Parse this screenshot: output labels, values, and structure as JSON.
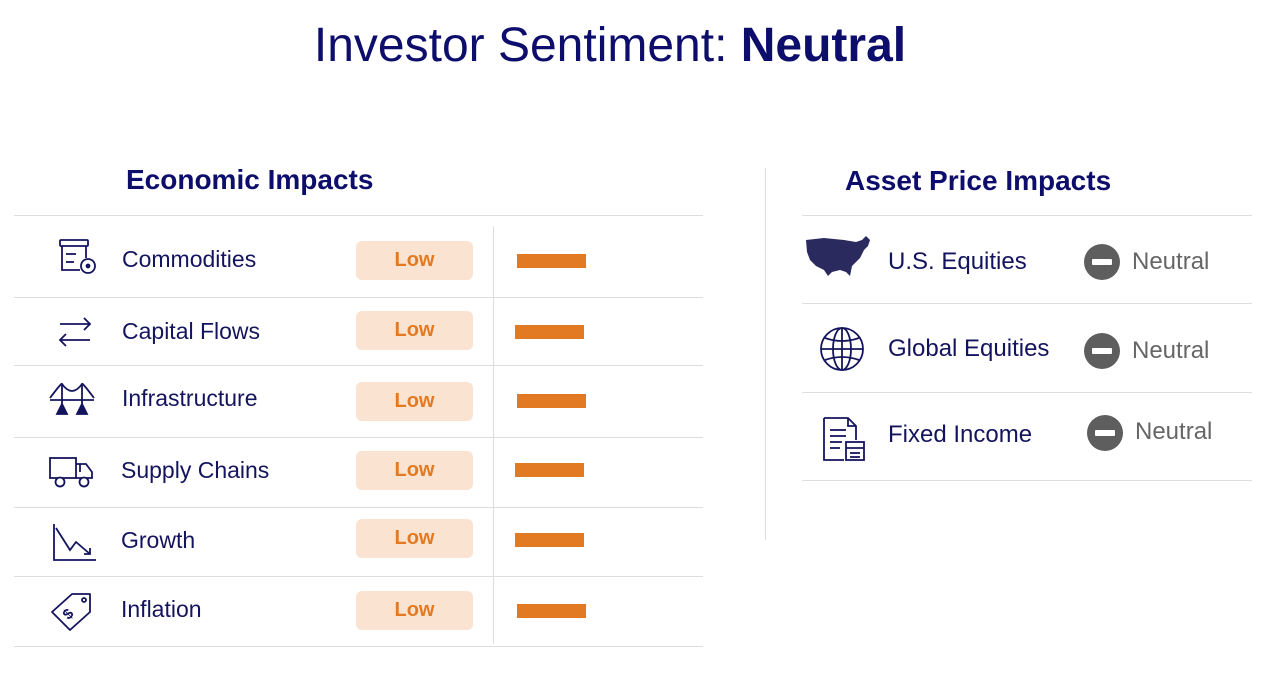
{
  "title": {
    "prefix": "Investor Sentiment: ",
    "value": "Neutral"
  },
  "economic": {
    "heading": "Economic Impacts",
    "rows": [
      {
        "icon": "commodities-icon",
        "label": "Commodities",
        "level": "Low"
      },
      {
        "icon": "capital-flows-icon",
        "label": "Capital Flows",
        "level": "Low"
      },
      {
        "icon": "infrastructure-icon",
        "label": "Infrastructure",
        "level": "Low"
      },
      {
        "icon": "truck-icon",
        "label": "Supply Chains",
        "level": "Low"
      },
      {
        "icon": "growth-decline-icon",
        "label": "Growth",
        "level": "Low"
      },
      {
        "icon": "price-tag-icon",
        "label": "Inflation",
        "level": "Low"
      }
    ]
  },
  "asset": {
    "heading": "Asset Price Impacts",
    "rows": [
      {
        "icon": "us-map-icon",
        "label": "U.S. Equities",
        "rating": "Neutral"
      },
      {
        "icon": "globe-icon",
        "label": "Global Equities",
        "rating": "Neutral"
      },
      {
        "icon": "document-icon",
        "label": "Fixed Income",
        "rating": "Neutral"
      }
    ]
  },
  "colors": {
    "navy": "#0d0d6b",
    "orange": "#e27a23",
    "badge_bg": "#fae3d1",
    "neutral_gray": "#5e5e5e"
  }
}
